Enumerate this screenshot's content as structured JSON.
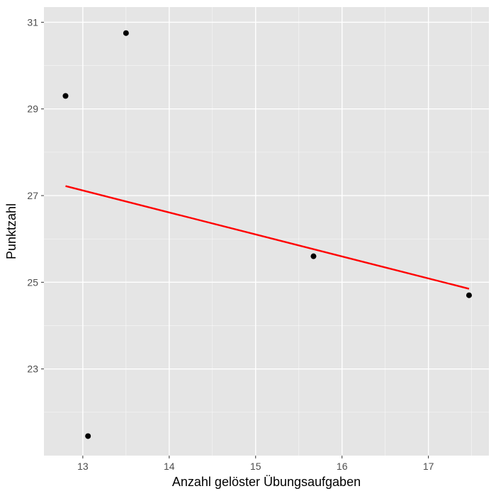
{
  "chart_data": {
    "type": "scatter",
    "title": "",
    "xlabel": "Anzahl gelöster Übungsaufgaben",
    "ylabel": "Punktzahl",
    "xlim": [
      12.55,
      17.7
    ],
    "ylim": [
      21.0,
      31.35
    ],
    "x_ticks": [
      13,
      14,
      15,
      16,
      17
    ],
    "x_minor_ticks": [
      13.5,
      14.5,
      15.5,
      16.5,
      17.5
    ],
    "y_ticks": [
      23,
      25,
      27,
      29,
      31
    ],
    "y_minor_ticks": [
      22,
      24,
      26,
      28,
      30
    ],
    "grid": true,
    "legend": "none",
    "points": [
      {
        "x": 12.8,
        "y": 29.3
      },
      {
        "x": 13.06,
        "y": 21.45
      },
      {
        "x": 13.5,
        "y": 30.75
      },
      {
        "x": 15.67,
        "y": 25.6
      },
      {
        "x": 17.47,
        "y": 24.7
      }
    ],
    "fit_line": {
      "x": [
        12.8,
        17.47
      ],
      "y": [
        27.22,
        24.85
      ]
    },
    "colors": {
      "panel_background": "#e5e5e5",
      "grid_major": "#ffffff",
      "point": "#000000",
      "fit_line": "#ff0000"
    }
  }
}
